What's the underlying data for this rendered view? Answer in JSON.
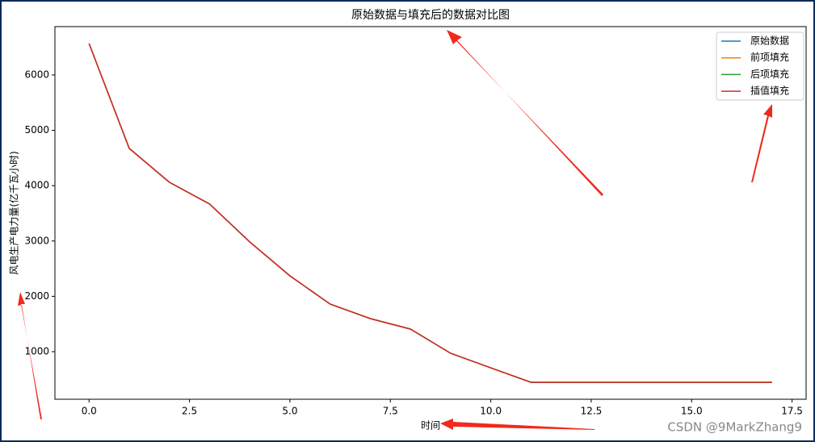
{
  "chart_data": {
    "type": "line",
    "title": "原始数据与填充后的数据对比图",
    "x_label": "时间",
    "y_label": "风电生产电力量(亿千瓦小时)",
    "x": [
      0,
      1,
      2,
      3,
      4,
      5,
      6,
      7,
      8,
      9,
      10,
      11,
      12,
      13,
      14,
      15,
      16,
      17
    ],
    "series": [
      {
        "name": "原始数据",
        "color": "#1f77b4",
        "values": [
          6568,
          4673,
          4061,
          3668,
          2983,
          2370,
          1860,
          1598,
          1408,
          971,
          708,
          446,
          446,
          446,
          446,
          446,
          446,
          446
        ]
      },
      {
        "name": "前项填充",
        "color": "#ff7f0e",
        "values": [
          6568,
          4673,
          4061,
          3668,
          2983,
          2370,
          1860,
          1598,
          1408,
          971,
          708,
          446,
          446,
          446,
          446,
          446,
          446,
          446
        ]
      },
      {
        "name": "后项填充",
        "color": "#2ca02c",
        "values": [
          6568,
          4673,
          4061,
          3668,
          2983,
          2370,
          1860,
          1598,
          1408,
          971,
          708,
          446,
          446,
          446,
          446,
          446,
          446,
          446
        ]
      },
      {
        "name": "插值填充",
        "color": "#d62728",
        "values": [
          6568,
          4673,
          4061,
          3668,
          2983,
          2370,
          1860,
          1598,
          1408,
          971,
          708,
          446,
          446,
          446,
          446,
          446,
          446,
          446
        ]
      }
    ],
    "xlim": [
      -0.85,
      17.85
    ],
    "xticks": [
      {
        "value": 0,
        "label": "0.0"
      },
      2.5,
      {
        "value": 5,
        "label": "5.0"
      },
      7.5,
      {
        "value": 10,
        "label": "10.0"
      },
      12.5,
      {
        "value": 15,
        "label": "15.0"
      },
      17.5
    ],
    "ylim": [
      140,
      6874
    ],
    "yticks": [
      1000,
      2000,
      3000,
      4000,
      5000,
      6000
    ],
    "legend": "upper right",
    "watermark": "CSDN @9MarkZhang9"
  }
}
